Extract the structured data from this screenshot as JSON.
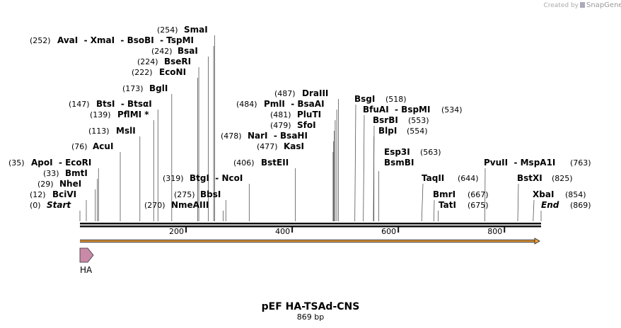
{
  "logo": {
    "created_by": "Created by",
    "brand": "SnapGene"
  },
  "title": "pEF HA-TSAd-CNS",
  "subtitle": "869 bp",
  "ruler": {
    "xlim": [
      0,
      869
    ],
    "ticks": [
      200,
      400,
      600,
      800
    ]
  },
  "features": [
    {
      "name": "HA"
    }
  ],
  "sites": [
    {
      "pos": {
        "value": 254,
        "label": "(254)"
      },
      "name": "SmaI"
    },
    {
      "pos": {
        "value": 252,
        "label": "(252)"
      },
      "name": "AvaI  - XmaI  - BsoBI  - TspMI"
    },
    {
      "pos": {
        "value": 242,
        "label": "(242)"
      },
      "name": "BsaI"
    },
    {
      "pos": {
        "value": 224,
        "label": "(224)"
      },
      "name": "BseRI"
    },
    {
      "pos": {
        "value": 222,
        "label": "(222)"
      },
      "name": "EcoNI"
    },
    {
      "pos": {
        "value": 173,
        "label": "(173)"
      },
      "name": "BglI"
    },
    {
      "pos": {
        "value": 147,
        "label": "(147)"
      },
      "name": "BtsI  - BtsαI"
    },
    {
      "pos": {
        "value": 139,
        "label": "(139)"
      },
      "name": "PflMI *"
    },
    {
      "pos": {
        "value": 113,
        "label": "(113)"
      },
      "name": "MslI"
    },
    {
      "pos": {
        "value": 76,
        "label": "(76)"
      },
      "name": "AcuI"
    },
    {
      "pos": {
        "value": 35,
        "label": "(35)"
      },
      "name": "ApoI  - EcoRI"
    },
    {
      "pos": {
        "value": 33,
        "label": "(33)"
      },
      "name": "BmtI"
    },
    {
      "pos": {
        "value": 29,
        "label": "(29)"
      },
      "name": "NheI"
    },
    {
      "pos": {
        "value": 12,
        "label": "(12)"
      },
      "name": "BciVI"
    },
    {
      "pos": {
        "value": 0,
        "label": "(0)"
      },
      "name": "Start",
      "italic": true
    },
    {
      "pos": {
        "value": 319,
        "label": "(319)"
      },
      "name": "BtgI  - NcoI"
    },
    {
      "pos": {
        "value": 275,
        "label": "(275)"
      },
      "name": "BbsI"
    },
    {
      "pos": {
        "value": 270,
        "label": "(270)"
      },
      "name": "NmeAIII"
    },
    {
      "pos": {
        "value": 487,
        "label": "(487)"
      },
      "name": "DraIII"
    },
    {
      "pos": {
        "value": 484,
        "label": "(484)"
      },
      "name": "PmlI  - BsaAI"
    },
    {
      "pos": {
        "value": 481,
        "label": "(481)"
      },
      "name": "PluTI"
    },
    {
      "pos": {
        "value": 479,
        "label": "(479)"
      },
      "name": "SfoI"
    },
    {
      "pos": {
        "value": 478,
        "label": "(478)"
      },
      "name": "NarI  - BsaHI"
    },
    {
      "pos": {
        "value": 477,
        "label": "(477)"
      },
      "name": "KasI"
    },
    {
      "pos": {
        "value": 406,
        "label": "(406)"
      },
      "name": "BstEII"
    },
    {
      "pos": {
        "value": 518,
        "label": "(518)"
      },
      "name": "BsgI"
    },
    {
      "pos": {
        "value": 534,
        "label": "(534)"
      },
      "name": "BfuAI  - BspMI"
    },
    {
      "pos": {
        "value": 553,
        "label": "(553)"
      },
      "name": "BsrBI"
    },
    {
      "pos": {
        "value": 554,
        "label": "(554)"
      },
      "name": "BlpI"
    },
    {
      "pos": {
        "value": 563,
        "label": "(563)"
      },
      "name": "Esp3I"
    },
    {
      "name": "BsmBI"
    },
    {
      "pos": {
        "value": 644,
        "label": "(644)"
      },
      "name": "TaqII"
    },
    {
      "pos": {
        "value": 763,
        "label": "(763)"
      },
      "name": "PvuII  - MspA1I"
    },
    {
      "pos": {
        "value": 825,
        "label": "(825)"
      },
      "name": "BstXI"
    },
    {
      "pos": {
        "value": 667,
        "label": "(667)"
      },
      "name": "BmrI"
    },
    {
      "pos": {
        "value": 854,
        "label": "(854)"
      },
      "name": "XbaI"
    },
    {
      "pos": {
        "value": 675,
        "label": "(675)"
      },
      "name": "TatI"
    },
    {
      "pos": {
        "value": 869,
        "label": "(869)"
      },
      "name": "End",
      "italic": true
    }
  ]
}
